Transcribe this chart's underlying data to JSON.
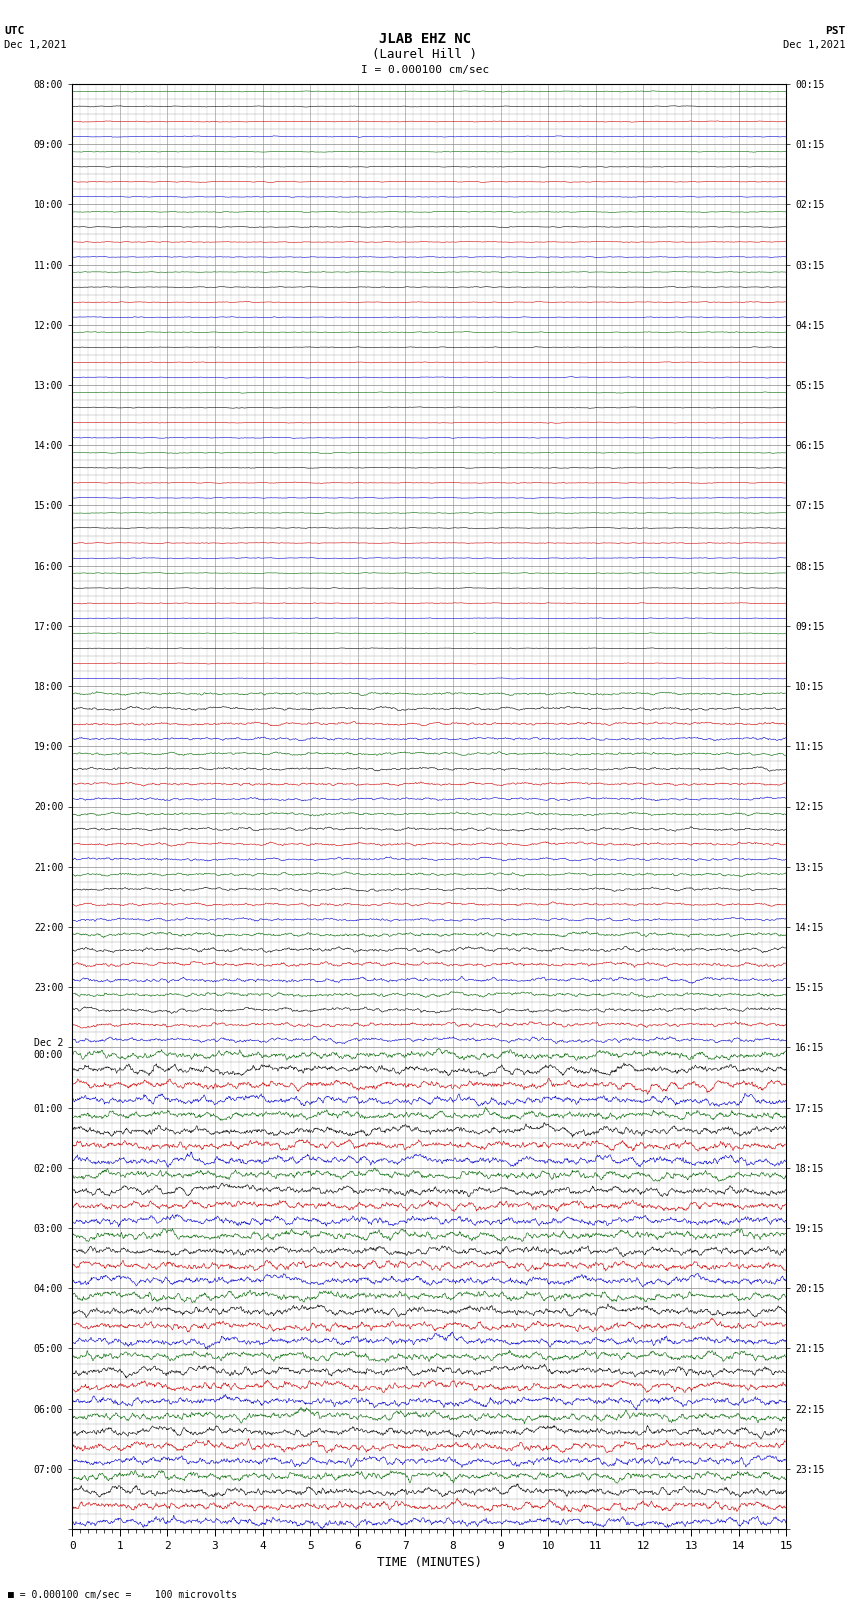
{
  "title_line1": "JLAB EHZ NC",
  "title_line2": "(Laurel Hill )",
  "scale_label": "I = 0.000100 cm/sec",
  "utc_label": "UTC",
  "utc_date": "Dec 1,2021",
  "pst_label": "PST",
  "pst_date": "Dec 1,2021",
  "xlabel": "TIME (MINUTES)",
  "footer": "= 0.000100 cm/sec =    100 microvolts",
  "xmin": 0,
  "xmax": 15,
  "figsize": [
    8.5,
    16.13
  ],
  "dpi": 100,
  "bg_color": "#ffffff",
  "grid_color": "#888888",
  "utc_times_labeled": [
    "08:00",
    "09:00",
    "10:00",
    "11:00",
    "12:00",
    "13:00",
    "14:00",
    "15:00",
    "16:00",
    "17:00",
    "18:00",
    "19:00",
    "20:00",
    "21:00",
    "22:00",
    "23:00",
    "Dec 2\n00:00",
    "01:00",
    "02:00",
    "03:00",
    "04:00",
    "05:00",
    "06:00",
    "07:00"
  ],
  "pst_times_labeled": [
    "00:15",
    "01:15",
    "02:15",
    "03:15",
    "04:15",
    "05:15",
    "06:15",
    "07:15",
    "08:15",
    "09:15",
    "10:15",
    "11:15",
    "12:15",
    "13:15",
    "14:15",
    "15:15",
    "16:15",
    "17:15",
    "18:15",
    "19:15",
    "20:15",
    "21:15",
    "22:15",
    "23:15"
  ],
  "num_hour_blocks": 24,
  "subrows_per_block": 4,
  "colors_per_subrow": [
    "#006600",
    "#000000",
    "#cc0000",
    "#0000cc"
  ],
  "quiet_rows": 40,
  "quiet_amplitude": 0.018,
  "active_amplitude": 0.055,
  "transition_row": 44
}
